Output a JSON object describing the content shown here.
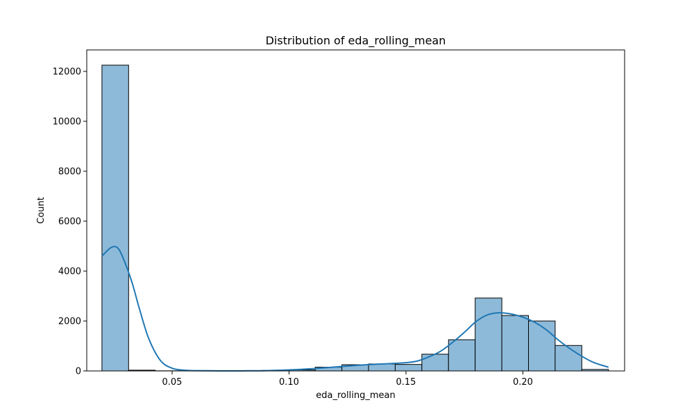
{
  "chart_data": {
    "type": "bar",
    "subtype": "histogram-with-kde",
    "title": "Distribution of eda_rolling_mean",
    "xlabel": "eda_rolling_mean",
    "ylabel": "Count",
    "xlim": [
      0.0135,
      0.2435
    ],
    "ylim": [
      0,
      12860
    ],
    "xticks": [
      0.05,
      0.1,
      0.15,
      0.2
    ],
    "xtick_labels": [
      "0.05",
      "0.10",
      "0.15",
      "0.20"
    ],
    "yticks": [
      0,
      2000,
      4000,
      6000,
      8000,
      10000,
      12000
    ],
    "ytick_labels": [
      "0",
      "2000",
      "4000",
      "6000",
      "8000",
      "10000",
      "12000"
    ],
    "bin_edges": [
      0.02,
      0.0314,
      0.0428,
      0.0542,
      0.0656,
      0.077,
      0.0884,
      0.0998,
      0.1112,
      0.1226,
      0.134,
      0.1454,
      0.1568,
      0.1682,
      0.1796,
      0.191,
      0.2024,
      0.2138,
      0.2252,
      0.2366
    ],
    "counts": [
      12250,
      30,
      5,
      5,
      5,
      10,
      20,
      40,
      150,
      250,
      280,
      260,
      670,
      1250,
      2920,
      2220,
      2000,
      1020,
      60
    ],
    "kde": {
      "x": [
        0.02,
        0.024,
        0.027,
        0.03,
        0.033,
        0.036,
        0.04,
        0.045,
        0.05,
        0.055,
        0.06,
        0.07,
        0.08,
        0.09,
        0.1,
        0.11,
        0.12,
        0.13,
        0.14,
        0.15,
        0.155,
        0.16,
        0.165,
        0.17,
        0.175,
        0.18,
        0.185,
        0.19,
        0.195,
        0.2,
        0.205,
        0.21,
        0.215,
        0.22,
        0.225,
        0.23,
        0.2366
      ],
      "y": [
        4600,
        4950,
        4900,
        4300,
        3500,
        2500,
        1300,
        420,
        110,
        30,
        10,
        5,
        5,
        10,
        40,
        90,
        160,
        230,
        280,
        330,
        400,
        570,
        800,
        1150,
        1550,
        1980,
        2250,
        2330,
        2280,
        2150,
        1950,
        1650,
        1250,
        900,
        600,
        350,
        150
      ]
    },
    "bar_fill": "#8ebad9",
    "bar_edge": "#000000",
    "kde_color": "#1f77b4",
    "grid": false,
    "legend": "none"
  }
}
